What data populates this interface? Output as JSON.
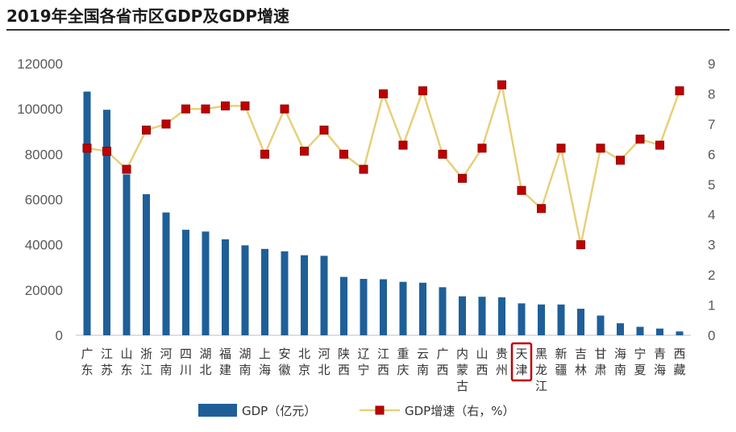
{
  "title": "2019年全国各省市区GDP及GDP增速",
  "chart_data": {
    "type": "bar+line",
    "title": "2019年全国各省市区GDP及GDP增速",
    "categories": [
      "广东",
      "江苏",
      "山东",
      "浙江",
      "河南",
      "四川",
      "湖北",
      "福建",
      "湖南",
      "上海",
      "安徽",
      "北京",
      "河北",
      "陕西",
      "辽宁",
      "江西",
      "重庆",
      "云南",
      "广西",
      "内蒙古",
      "山西",
      "贵州",
      "天津",
      "黑龙江",
      "新疆",
      "吉林",
      "甘肃",
      "海南",
      "宁夏",
      "青海",
      "西藏"
    ],
    "series": [
      {
        "name": "GDP（亿元）",
        "type": "bar",
        "axis": "left",
        "color": "#1f5f98",
        "values": [
          107671,
          99632,
          71068,
          62352,
          54259,
          46616,
          45828,
          42395,
          39752,
          38155,
          37114,
          35371,
          35105,
          25793,
          24909,
          24758,
          23606,
          23224,
          21237,
          17213,
          17027,
          16769,
          14104,
          13613,
          13597,
          11727,
          8718,
          5309,
          3748,
          2966,
          1698
        ]
      },
      {
        "name": "GDP增速（右，%）",
        "type": "line",
        "axis": "right",
        "line_color": "#e6d07a",
        "marker_color": "#c00000",
        "values": [
          6.2,
          6.1,
          5.5,
          6.8,
          7.0,
          7.5,
          7.5,
          7.6,
          7.6,
          6.0,
          7.5,
          6.1,
          6.8,
          6.0,
          5.5,
          8.0,
          6.3,
          8.1,
          6.0,
          5.2,
          6.2,
          8.3,
          4.8,
          4.2,
          6.2,
          3.0,
          6.2,
          5.8,
          6.5,
          6.3,
          8.1
        ]
      }
    ],
    "y_left": {
      "min": 0,
      "max": 120000,
      "ticks": [
        "0",
        "20000",
        "40000",
        "60000",
        "80000",
        "100000",
        "120000"
      ]
    },
    "y_right": {
      "min": 0,
      "max": 9,
      "ticks": [
        "0",
        "1",
        "2",
        "3",
        "4",
        "5",
        "6",
        "7",
        "8",
        "9"
      ]
    },
    "highlight_category": "天津",
    "highlight_color": "#c00000",
    "grid": false,
    "legend_position": "bottom"
  }
}
